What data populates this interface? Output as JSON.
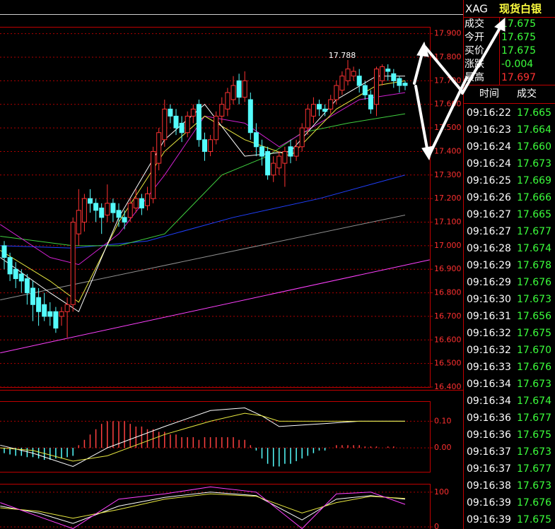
{
  "chart_data": [
    {
      "type": "candlestick",
      "up_color": "#ff3232",
      "down_color": "#54fcfc",
      "grid": true,
      "grid_color": "#b00000",
      "ylim": [
        16.4,
        17.92
      ],
      "yticks": [
        {
          "value": 16.4,
          "label": "16.400"
        },
        {
          "value": 16.5,
          "label": "16.500"
        },
        {
          "value": 16.6,
          "label": "16.600"
        },
        {
          "value": 16.7,
          "label": "16.700"
        },
        {
          "value": 16.8,
          "label": "16.800"
        },
        {
          "value": 16.9,
          "label": "16.900"
        },
        {
          "value": 17.0,
          "label": "17.000"
        },
        {
          "value": 17.1,
          "label": "17.100"
        },
        {
          "value": 17.2,
          "label": "17.200"
        },
        {
          "value": 17.3,
          "label": "17.300"
        },
        {
          "value": 17.4,
          "label": "17.400"
        },
        {
          "value": 17.5,
          "label": "17.500"
        },
        {
          "value": 17.6,
          "label": "17.600"
        },
        {
          "value": 17.7,
          "label": "17.700"
        },
        {
          "value": 17.8,
          "label": "17.800"
        },
        {
          "value": 17.9,
          "label": "17.900"
        }
      ],
      "open": [
        17.0,
        16.95,
        16.9,
        16.88,
        16.86,
        16.82,
        16.78,
        16.75,
        16.72,
        16.72,
        16.7,
        16.72,
        16.75,
        17.05,
        17.1,
        17.2,
        17.18,
        17.16,
        17.13,
        17.18,
        17.15,
        17.12,
        17.12,
        17.16,
        17.2,
        17.17,
        17.2,
        17.35,
        17.45,
        17.58,
        17.55,
        17.52,
        17.48,
        17.55,
        17.6,
        17.45,
        17.4,
        17.45,
        17.55,
        17.58,
        17.62,
        17.7,
        17.63,
        17.62,
        17.48,
        17.42,
        17.4,
        17.3,
        17.33,
        17.35,
        17.42,
        17.38,
        17.42,
        17.5,
        17.55,
        17.6,
        17.58,
        17.58,
        17.62,
        17.66,
        17.7,
        17.72,
        17.72,
        17.68,
        17.64,
        17.6,
        17.7,
        17.75,
        17.73,
        17.71,
        17.69
      ],
      "high": [
        17.02,
        16.97,
        16.93,
        16.9,
        16.88,
        16.85,
        16.82,
        16.8,
        16.76,
        16.74,
        16.74,
        16.78,
        17.12,
        17.24,
        17.22,
        17.24,
        17.2,
        17.18,
        17.26,
        17.2,
        17.18,
        17.15,
        17.2,
        17.24,
        17.22,
        17.25,
        17.42,
        17.5,
        17.62,
        17.6,
        17.58,
        17.55,
        17.57,
        17.6,
        17.62,
        17.48,
        17.47,
        17.57,
        17.63,
        17.67,
        17.72,
        17.73,
        17.74,
        17.65,
        17.52,
        17.45,
        17.42,
        17.38,
        17.4,
        17.42,
        17.45,
        17.45,
        17.52,
        17.6,
        17.63,
        17.62,
        17.6,
        17.64,
        17.7,
        17.74,
        17.788,
        17.76,
        17.75,
        17.7,
        17.66,
        17.76,
        17.77,
        17.77,
        17.75,
        17.72,
        17.7
      ],
      "low": [
        16.9,
        16.85,
        16.82,
        16.8,
        16.75,
        16.68,
        16.66,
        16.68,
        16.66,
        16.63,
        16.66,
        16.61,
        16.72,
        17.0,
        17.06,
        17.14,
        17.1,
        17.05,
        17.1,
        17.1,
        17.08,
        17.07,
        17.1,
        17.14,
        17.13,
        17.15,
        17.18,
        17.32,
        17.42,
        17.52,
        17.47,
        17.44,
        17.46,
        17.52,
        17.42,
        17.36,
        17.38,
        17.43,
        17.52,
        17.55,
        17.6,
        17.6,
        17.61,
        17.45,
        17.38,
        17.34,
        17.28,
        17.27,
        17.3,
        17.25,
        17.35,
        17.36,
        17.4,
        17.47,
        17.52,
        17.55,
        17.55,
        17.56,
        17.6,
        17.64,
        17.68,
        17.7,
        17.65,
        17.62,
        17.56,
        17.55,
        17.68,
        17.7,
        17.67,
        17.65,
        17.66
      ],
      "close": [
        16.95,
        16.88,
        16.86,
        16.85,
        16.8,
        16.75,
        16.72,
        16.7,
        16.7,
        16.65,
        16.72,
        16.75,
        17.1,
        17.15,
        17.2,
        17.18,
        17.15,
        17.12,
        17.18,
        17.14,
        17.12,
        17.1,
        17.18,
        17.2,
        17.16,
        17.22,
        17.4,
        17.48,
        17.58,
        17.55,
        17.5,
        17.48,
        17.55,
        17.58,
        17.45,
        17.4,
        17.45,
        17.55,
        17.6,
        17.65,
        17.68,
        17.63,
        17.7,
        17.48,
        17.42,
        17.38,
        17.3,
        17.35,
        17.38,
        17.4,
        17.38,
        17.42,
        17.5,
        17.58,
        17.6,
        17.58,
        17.57,
        17.62,
        17.68,
        17.72,
        17.75,
        17.74,
        17.68,
        17.64,
        17.58,
        17.75,
        17.76,
        17.74,
        17.7,
        17.68,
        17.68
      ],
      "series": [
        {
          "color": "#ff40ff",
          "x": [
            -0.7,
            74.3
          ],
          "values": [
            16.545,
            16.94
          ]
        },
        {
          "color": "#909090",
          "x": [
            -0.7,
            70
          ],
          "values": [
            16.77,
            17.13
          ]
        },
        {
          "color": "#2040ff",
          "x": [
            -0.7,
            12,
            25,
            40,
            55,
            70
          ],
          "values": [
            17.0,
            16.99,
            17.02,
            17.12,
            17.2,
            17.3
          ]
        },
        {
          "color": "#40d040",
          "x": [
            -0.7,
            12,
            20,
            28,
            38,
            46,
            52,
            60,
            70
          ],
          "values": [
            17.04,
            17.0,
            17.0,
            17.05,
            17.3,
            17.38,
            17.48,
            17.52,
            17.56
          ]
        },
        {
          "color": "#d020d0",
          "x": [
            -0.7,
            8,
            13,
            20,
            28,
            35,
            42,
            48,
            55,
            62,
            70
          ],
          "values": [
            17.09,
            16.95,
            16.92,
            17.05,
            17.3,
            17.55,
            17.52,
            17.42,
            17.52,
            17.62,
            17.65
          ]
        },
        {
          "color": "#e8e840",
          "x": [
            -0.7,
            8,
            13,
            20,
            28,
            35,
            42,
            50,
            58,
            65,
            70
          ],
          "values": [
            16.98,
            16.85,
            16.76,
            17.1,
            17.4,
            17.55,
            17.45,
            17.38,
            17.58,
            17.68,
            17.7
          ]
        },
        {
          "color": "#ffffff",
          "x": [
            -0.7,
            8,
            13,
            20,
            28,
            35,
            42,
            50,
            58,
            65,
            70
          ],
          "values": [
            16.95,
            16.8,
            16.72,
            17.12,
            17.45,
            17.6,
            17.38,
            17.4,
            17.62,
            17.72,
            17.72
          ]
        }
      ],
      "annotation": "17.788"
    },
    {
      "type": "macd",
      "up_color": "#ff4040",
      "down_color": "#54fcfc",
      "grid": true,
      "grid_color": "#b00000",
      "ylim": [
        -0.09,
        0.17
      ],
      "yticks": [
        {
          "value": 0.0,
          "label": "0.00"
        },
        {
          "value": 0.1,
          "label": "0.10"
        }
      ],
      "values": [
        -0.02,
        -0.025,
        -0.03,
        -0.03,
        -0.035,
        -0.035,
        -0.04,
        -0.045,
        -0.045,
        -0.04,
        -0.04,
        -0.035,
        -0.03,
        0.01,
        0.03,
        0.05,
        0.07,
        0.09,
        0.1,
        0.1,
        0.1,
        0.1,
        0.09,
        0.08,
        0.08,
        0.07,
        0.07,
        0.06,
        0.06,
        0.05,
        0.05,
        0.04,
        0.04,
        0.04,
        0.03,
        0.04,
        0.04,
        0.04,
        0.04,
        0.04,
        0.04,
        0.03,
        0.03,
        0.01,
        -0.01,
        -0.04,
        -0.06,
        -0.07,
        -0.07,
        -0.06,
        -0.06,
        -0.05,
        -0.04,
        -0.03,
        -0.02,
        -0.01,
        -0.01,
        0.0,
        0.01,
        0.01,
        0.01,
        0.01,
        0.01,
        0.005,
        0.005,
        0.005,
        0.0,
        0.005,
        0.005,
        0.0,
        0.0
      ],
      "series": [
        {
          "color": "#ffffff",
          "x": [
            -0.7,
            5,
            12,
            18,
            28,
            36,
            42,
            45,
            48,
            55,
            62,
            70
          ],
          "values": [
            0.01,
            -0.02,
            -0.07,
            0.0,
            0.08,
            0.14,
            0.15,
            0.12,
            0.08,
            0.09,
            0.1,
            0.1
          ]
        },
        {
          "color": "#e8e840",
          "x": [
            -0.7,
            5,
            12,
            18,
            28,
            36,
            42,
            45,
            48,
            55,
            62,
            70
          ],
          "values": [
            0.0,
            -0.01,
            -0.05,
            -0.03,
            0.05,
            0.1,
            0.13,
            0.12,
            0.1,
            0.1,
            0.1,
            0.1
          ]
        }
      ]
    },
    {
      "type": "kdj",
      "grid": true,
      "grid_color": "#b00000",
      "ylim": [
        -6,
        122
      ],
      "yticks": [
        0,
        100
      ],
      "series": [
        {
          "color": "#ffffff",
          "x": [
            -0.7,
            6,
            12,
            20,
            28,
            36,
            44,
            52,
            58,
            64,
            70
          ],
          "values": [
            60,
            40,
            10,
            60,
            85,
            100,
            90,
            20,
            80,
            90,
            80
          ]
        },
        {
          "color": "#e8e840",
          "x": [
            -0.7,
            6,
            12,
            20,
            28,
            36,
            44,
            52,
            58,
            64,
            70
          ],
          "values": [
            55,
            45,
            25,
            50,
            80,
            95,
            88,
            40,
            70,
            88,
            82
          ]
        },
        {
          "color": "#ff40ff",
          "x": [
            -0.7,
            6,
            12,
            20,
            28,
            36,
            44,
            52,
            58,
            64,
            70
          ],
          "values": [
            70,
            30,
            -5,
            80,
            95,
            115,
            100,
            -5,
            95,
            100,
            65
          ]
        }
      ]
    }
  ],
  "quote_panel": {
    "symbol": "XAG",
    "name": "现货白银",
    "rows": [
      {
        "label": "成交",
        "value": "17.675",
        "color": "#3cff3c"
      },
      {
        "label": "今开",
        "value": "17.675",
        "color": "#3cff3c"
      },
      {
        "label": "买价",
        "value": "17.675",
        "color": "#3cff3c"
      },
      {
        "label": "涨跌",
        "value": "-0.004",
        "color": "#3cff3c"
      },
      {
        "label": "最高",
        "value": "17.697",
        "color": "#ff3232"
      }
    ]
  },
  "trade_table": {
    "header": [
      "时间",
      "成交"
    ],
    "price_color": "#3cff3c",
    "rows": [
      [
        "09:16:22",
        "17.665"
      ],
      [
        "09:16:23",
        "17.664"
      ],
      [
        "09:16:24",
        "17.660"
      ],
      [
        "09:16:24",
        "17.673"
      ],
      [
        "09:16:25",
        "17.669"
      ],
      [
        "09:16:26",
        "17.666"
      ],
      [
        "09:16:27",
        "17.665"
      ],
      [
        "09:16:27",
        "17.677"
      ],
      [
        "09:16:28",
        "17.674"
      ],
      [
        "09:16:29",
        "17.678"
      ],
      [
        "09:16:29",
        "17.676"
      ],
      [
        "09:16:30",
        "17.673"
      ],
      [
        "09:16:31",
        "17.656"
      ],
      [
        "09:16:32",
        "17.675"
      ],
      [
        "09:16:32",
        "17.670"
      ],
      [
        "09:16:33",
        "17.676"
      ],
      [
        "09:16:34",
        "17.673"
      ],
      [
        "09:16:34",
        "17.674"
      ],
      [
        "09:16:36",
        "17.677"
      ],
      [
        "09:16:36",
        "17.675"
      ],
      [
        "09:16:37",
        "17.673"
      ],
      [
        "09:16:37",
        "17.677"
      ],
      [
        "09:16:38",
        "17.673"
      ],
      [
        "09:16:39",
        "17.676"
      ],
      [
        "09:16:39",
        "17.675"
      ]
    ]
  }
}
